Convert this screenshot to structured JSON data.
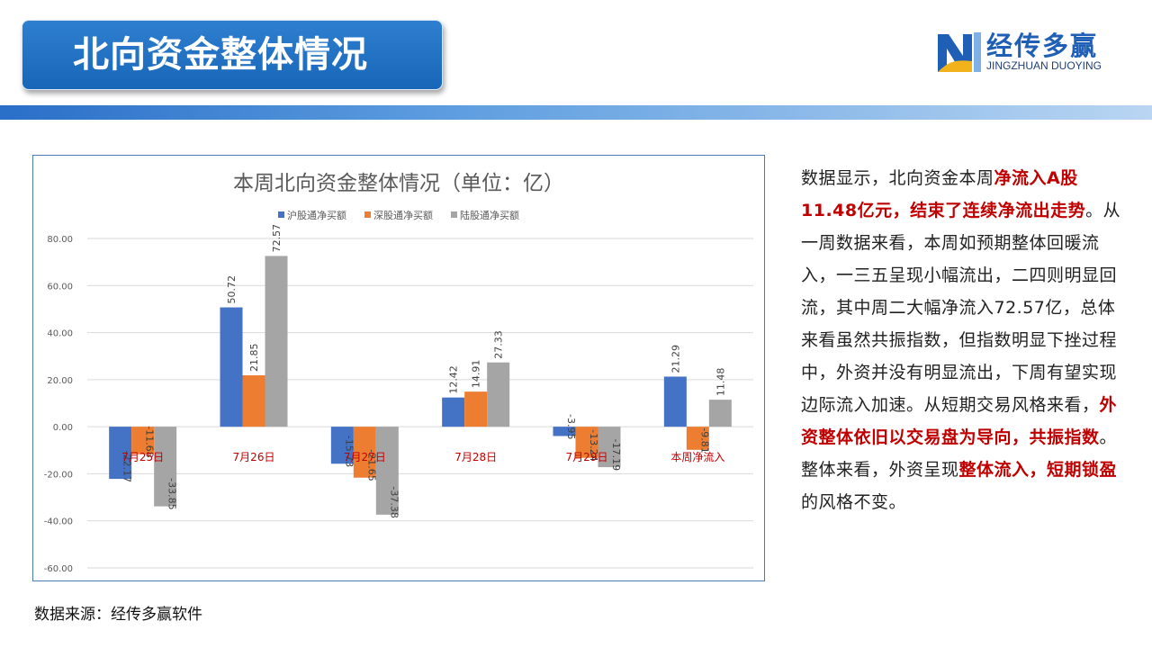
{
  "header": {
    "title": "北向资金整体情况"
  },
  "logo": {
    "name": "经传多赢",
    "sub": "JINGZHUAN DUOYING"
  },
  "source": "数据来源：经传多赢软件",
  "side_text": [
    {
      "t": "数据显示，北向资金本周",
      "hl": false
    },
    {
      "t": "净流入A股11.48亿元，结束了连续净流出走势",
      "hl": true
    },
    {
      "t": "。从一周数据来看，本周如预期整体回暖流入，一三五呈现小幅流出，二四则明显回流，其中周二大幅净流入72.57亿，总体来看虽然共振指数，但指数明显下挫过程中，外资并没有明显流出，下周有望实现边际流入加速。从短期交易风格来看，",
      "hl": false
    },
    {
      "t": "外资整体依旧以交易盘为导向，共振指数",
      "hl": true
    },
    {
      "t": "。整体来看，外资呈现",
      "hl": false
    },
    {
      "t": "整体流入，短期锁盈",
      "hl": true
    },
    {
      "t": "的风格不变。",
      "hl": false
    }
  ],
  "chart_data": {
    "type": "bar",
    "title": "本周北向资金整体情况（单位：亿）",
    "categories": [
      "7月25日",
      "7月26日",
      "7月27日",
      "7月28日",
      "7月29日",
      "本周净流入"
    ],
    "series": [
      {
        "name": "沪股通净买额",
        "color": "#4472c4",
        "values": [
          -22.17,
          50.72,
          -15.73,
          12.42,
          -3.95,
          21.29
        ]
      },
      {
        "name": "深股通净买额",
        "color": "#ed7d31",
        "values": [
          -11.68,
          21.85,
          -21.65,
          14.91,
          -13.24,
          -9.81
        ]
      },
      {
        "name": "陆股通净买额",
        "color": "#a5a5a5",
        "values": [
          -33.85,
          72.57,
          -37.38,
          27.33,
          -17.19,
          11.48
        ]
      }
    ],
    "ylim": [
      -60,
      80
    ],
    "yticks": [
      "80.00",
      "60.00",
      "40.00",
      "20.00",
      "0.00",
      "-20.00",
      "-40.00",
      "-60.00"
    ],
    "grid": true,
    "legend": "top",
    "category_label_color": "#c00000"
  }
}
